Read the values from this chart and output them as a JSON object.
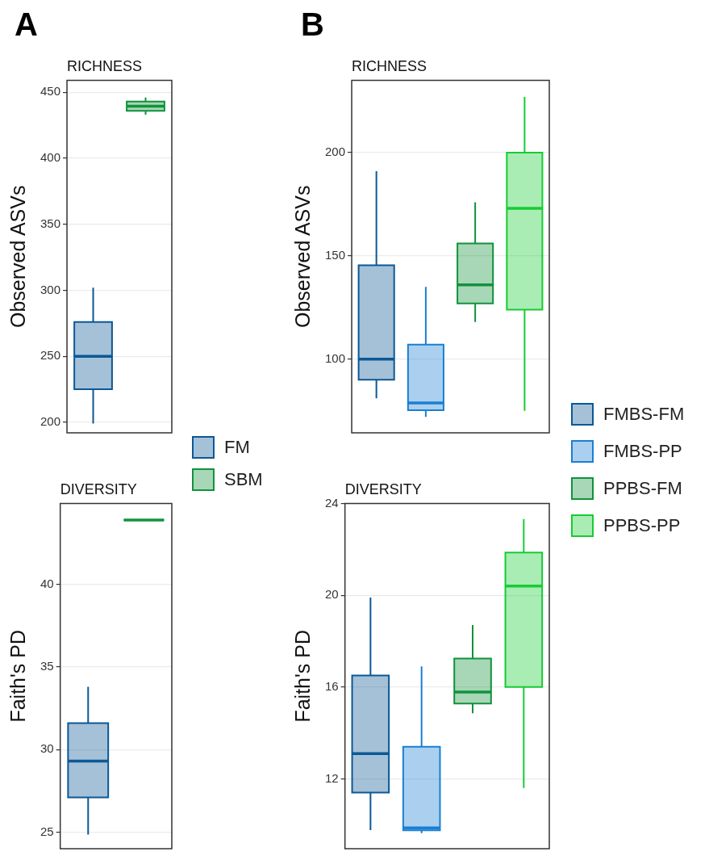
{
  "chart_data": [
    {
      "type": "box",
      "title": "RICHNESS",
      "ylabel": "Observed ASVs",
      "categories": [
        null
      ],
      "ylim": [
        192,
        459
      ],
      "yticks": [
        200,
        250,
        300,
        350,
        400,
        450
      ],
      "grid": "y",
      "tick_labels": "y",
      "legend": "right",
      "annotations": [
        "A"
      ],
      "series": [
        {
          "name": "FM",
          "color": "#0b5896",
          "boxes": [
            {
              "low": 199,
              "q1": 225,
              "median": 250,
              "q3": 276,
              "high": 302
            }
          ]
        },
        {
          "name": "SBM",
          "color": "#11923b",
          "boxes": [
            {
              "low": 433,
              "q1": 436,
              "median": 439.5,
              "q3": 443,
              "high": 446
            }
          ]
        }
      ]
    },
    {
      "type": "box",
      "title": "DIVERSITY",
      "ylabel": "Faith's PD",
      "categories": [
        null
      ],
      "ylim": [
        24,
        44.9
      ],
      "yticks": [
        25,
        30,
        35,
        40
      ],
      "grid": "y",
      "tick_labels": "y",
      "series": [
        {
          "color": "#0b5896",
          "boxes": [
            {
              "low": 24.85,
              "q1": 27.1,
              "median": 29.3,
              "q3": 31.6,
              "high": 33.8
            }
          ]
        },
        {
          "color": "#11923b",
          "boxes": [
            {
              "low": 43.9,
              "q1": 43.9,
              "median": 43.9,
              "q3": 43.9,
              "high": 43.9
            }
          ]
        }
      ]
    },
    {
      "type": "box",
      "title": "RICHNESS",
      "ylabel": "Observed ASVs",
      "categories": [
        null
      ],
      "ylim": [
        64.3,
        235
      ],
      "yticks": [
        100,
        150,
        200
      ],
      "grid": "y",
      "tick_labels": "y",
      "legend": "right",
      "annotations": [
        "B"
      ],
      "series": [
        {
          "name": "FMBS-FM",
          "color": "#0b5896",
          "boxes": [
            {
              "low": 81,
              "q1": 90,
              "median": 100,
              "q3": 145.5,
              "high": 191
            }
          ]
        },
        {
          "name": "FMBS-PP",
          "color": "#1a7fd3",
          "boxes": [
            {
              "low": 72,
              "q1": 75.3,
              "median": 78.8,
              "q3": 107,
              "high": 135
            }
          ]
        },
        {
          "name": "PPBS-FM",
          "color": "#11923b",
          "boxes": [
            {
              "low": 118,
              "q1": 127,
              "median": 136,
              "q3": 156,
              "high": 176
            }
          ]
        },
        {
          "name": "PPBS-PP",
          "color": "#16cc34",
          "boxes": [
            {
              "low": 75,
              "q1": 124,
              "median": 173,
              "q3": 200,
              "high": 227
            }
          ]
        }
      ]
    },
    {
      "type": "box",
      "title": "DIVERSITY",
      "ylabel": "Faith's PD",
      "categories": [
        null
      ],
      "ylim": [
        8.95,
        24
      ],
      "yticks": [
        12,
        16,
        20,
        24
      ],
      "grid": "y",
      "tick_labels": "y",
      "series": [
        {
          "color": "#0b5896",
          "boxes": [
            {
              "low": 9.76,
              "q1": 11.4,
              "median": 13.1,
              "q3": 16.5,
              "high": 19.9
            }
          ]
        },
        {
          "color": "#1a7fd3",
          "boxes": [
            {
              "low": 9.63,
              "q1": 9.75,
              "median": 9.86,
              "q3": 13.4,
              "high": 16.9
            }
          ]
        },
        {
          "color": "#11923b",
          "boxes": [
            {
              "low": 14.86,
              "q1": 15.28,
              "median": 15.78,
              "q3": 17.24,
              "high": 18.7
            }
          ]
        },
        {
          "color": "#16cc34",
          "boxes": [
            {
              "low": 11.6,
              "q1": 16,
              "median": 20.4,
              "q3": 21.86,
              "high": 23.33
            }
          ]
        }
      ]
    }
  ]
}
